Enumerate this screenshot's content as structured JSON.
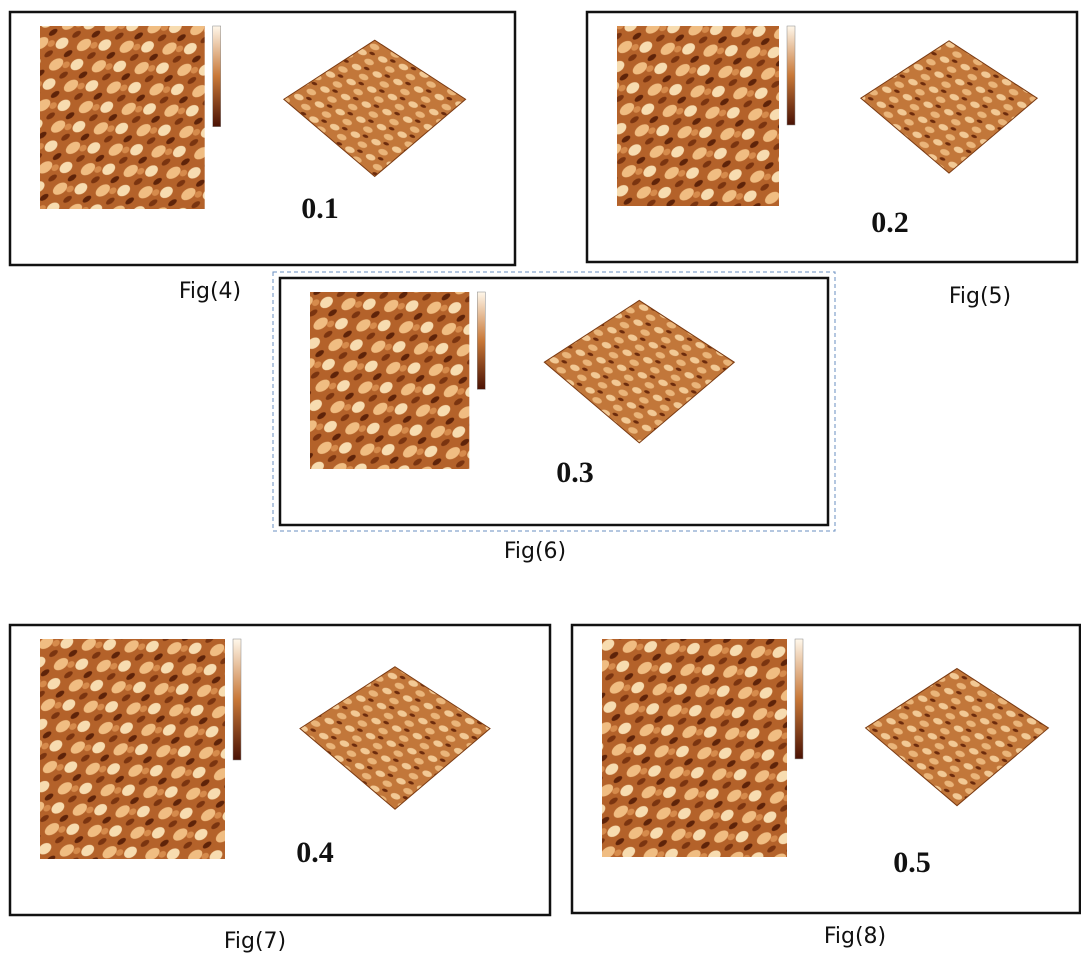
{
  "figures": [
    {
      "label": "0.1",
      "caption": "Fig(4)"
    },
    {
      "label": "0.2",
      "caption": "Fig(5)"
    },
    {
      "label": "0.3",
      "caption": "Fig(6)"
    },
    {
      "label": "0.4",
      "caption": "Fig(7)"
    },
    {
      "label": "0.5",
      "caption": "Fig(8)"
    }
  ]
}
